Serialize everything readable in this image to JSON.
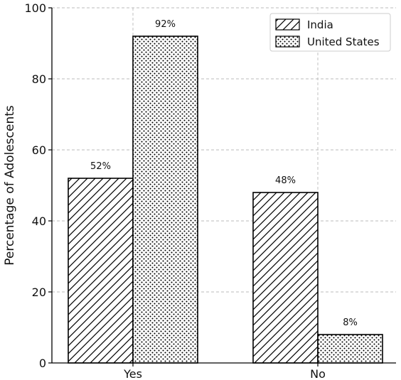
{
  "chart_data": {
    "type": "bar",
    "categories": [
      "Yes",
      "No"
    ],
    "series": [
      {
        "name": "India",
        "values": [
          52,
          48
        ],
        "labels": [
          "52%",
          "48%"
        ],
        "pattern": "hatch"
      },
      {
        "name": "United States",
        "values": [
          92,
          8
        ],
        "labels": [
          "92%",
          "8%"
        ],
        "pattern": "dots"
      }
    ],
    "ylabel": "Percentage of Adolescents",
    "xlabel": "",
    "ylim": [
      0,
      100
    ],
    "yticks": [
      0,
      20,
      40,
      60,
      80,
      100
    ],
    "grid": true,
    "legend_position": "top-right",
    "colors": {
      "fill": "#ffffff",
      "edge": "#000000",
      "grid": "#bbbbbb"
    }
  }
}
